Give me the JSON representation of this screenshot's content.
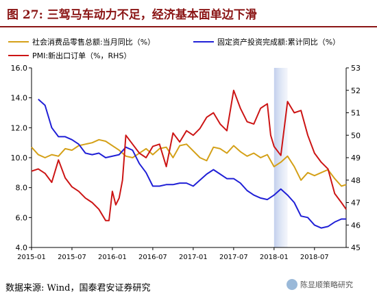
{
  "header": {
    "title": "图 27:  三驾马车动力不足，经济基本面单边下滑"
  },
  "footer": {
    "source": "数据来源:  Wind，国泰君安证券研究",
    "watermark": "陈显顺策略研究"
  },
  "chart_data": {
    "type": "line",
    "x_tick_labels": [
      "2015-01",
      "2015-07",
      "2016-01",
      "2016-07",
      "2017-01",
      "2017-07",
      "2018-01",
      "2018-07"
    ],
    "x_range_months": [
      0,
      46
    ],
    "yleft": {
      "min": 4.0,
      "max": 16.0,
      "ticks": [
        "4.0",
        "6.0",
        "8.0",
        "10.0",
        "12.0",
        "14.0",
        "16.0"
      ]
    },
    "yright": {
      "min": 45,
      "max": 53,
      "ticks": [
        "45",
        "46",
        "47",
        "48",
        "49",
        "50",
        "51",
        "52",
        "53"
      ]
    },
    "shaded_region": [
      36,
      38
    ],
    "series": [
      {
        "name": "社会消费品零售总额:当月同比（%）",
        "color": "#d4a017",
        "axis": "left",
        "points": [
          [
            0,
            10.7
          ],
          [
            1,
            10.2
          ],
          [
            2,
            10.0
          ],
          [
            3,
            10.2
          ],
          [
            4,
            10.1
          ],
          [
            5,
            10.6
          ],
          [
            6,
            10.5
          ],
          [
            7,
            10.8
          ],
          [
            8,
            10.9
          ],
          [
            9,
            11.0
          ],
          [
            10,
            11.2
          ],
          [
            11,
            11.1
          ],
          [
            13,
            10.5
          ],
          [
            14,
            10.1
          ],
          [
            15,
            10.0
          ],
          [
            16,
            10.3
          ],
          [
            17,
            10.6
          ],
          [
            18,
            10.2
          ],
          [
            19,
            10.6
          ],
          [
            20,
            10.7
          ],
          [
            21,
            10.0
          ],
          [
            22,
            10.8
          ],
          [
            23,
            10.9
          ],
          [
            25,
            10.0
          ],
          [
            26,
            9.8
          ],
          [
            27,
            10.7
          ],
          [
            28,
            10.6
          ],
          [
            29,
            10.3
          ],
          [
            30,
            10.8
          ],
          [
            31,
            10.4
          ],
          [
            32,
            10.1
          ],
          [
            33,
            10.3
          ],
          [
            34,
            10.0
          ],
          [
            35,
            10.2
          ],
          [
            36,
            9.4
          ],
          [
            37,
            9.7
          ],
          [
            38,
            10.1
          ],
          [
            39,
            9.4
          ],
          [
            40,
            8.5
          ],
          [
            41,
            9.0
          ],
          [
            42,
            8.8
          ],
          [
            43,
            9.0
          ],
          [
            44,
            9.2
          ],
          [
            45,
            8.6
          ],
          [
            46,
            8.1
          ],
          [
            46.7,
            8.2
          ]
        ]
      },
      {
        "name": "固定资产投资完成额:累计同比（%）",
        "color": "#1f1fd6",
        "axis": "left",
        "points": [
          [
            1,
            13.9
          ],
          [
            2,
            13.5
          ],
          [
            3,
            12.0
          ],
          [
            4,
            11.4
          ],
          [
            5,
            11.4
          ],
          [
            6,
            11.2
          ],
          [
            7,
            10.9
          ],
          [
            8,
            10.3
          ],
          [
            9,
            10.2
          ],
          [
            10,
            10.3
          ],
          [
            11,
            10.0
          ],
          [
            13,
            10.2
          ],
          [
            14,
            10.7
          ],
          [
            15,
            10.5
          ],
          [
            16,
            9.6
          ],
          [
            17,
            9.0
          ],
          [
            18,
            8.1
          ],
          [
            19,
            8.1
          ],
          [
            20,
            8.2
          ],
          [
            21,
            8.2
          ],
          [
            22,
            8.3
          ],
          [
            23,
            8.3
          ],
          [
            24,
            8.1
          ],
          [
            26,
            8.9
          ],
          [
            27,
            9.2
          ],
          [
            28,
            8.9
          ],
          [
            29,
            8.6
          ],
          [
            30,
            8.6
          ],
          [
            31,
            8.3
          ],
          [
            32,
            7.8
          ],
          [
            33,
            7.5
          ],
          [
            34,
            7.3
          ],
          [
            35,
            7.2
          ],
          [
            36,
            7.5
          ],
          [
            37,
            7.9
          ],
          [
            38,
            7.5
          ],
          [
            39,
            7.0
          ],
          [
            40,
            6.1
          ],
          [
            41,
            6.0
          ],
          [
            42,
            5.5
          ],
          [
            43,
            5.3
          ],
          [
            44,
            5.4
          ],
          [
            45,
            5.7
          ],
          [
            46,
            5.9
          ],
          [
            46.7,
            5.9
          ]
        ]
      },
      {
        "name": "PMI:新出口订单（%，RHS）",
        "color": "#cc1414",
        "axis": "right",
        "points": [
          [
            0,
            48.4
          ],
          [
            1,
            48.5
          ],
          [
            2,
            48.3
          ],
          [
            3,
            47.9
          ],
          [
            4,
            48.9
          ],
          [
            5,
            48.1
          ],
          [
            6,
            47.7
          ],
          [
            7,
            47.5
          ],
          [
            8,
            47.2
          ],
          [
            9,
            47.0
          ],
          [
            10,
            46.7
          ],
          [
            11,
            46.2
          ],
          [
            11.5,
            46.2
          ],
          [
            12,
            47.5
          ],
          [
            12.5,
            46.9
          ],
          [
            13,
            47.2
          ],
          [
            13.5,
            48.0
          ],
          [
            14,
            50.0
          ],
          [
            15,
            49.6
          ],
          [
            16,
            49.2
          ],
          [
            17,
            49.0
          ],
          [
            18,
            49.5
          ],
          [
            19,
            49.6
          ],
          [
            20,
            48.6
          ],
          [
            21,
            50.1
          ],
          [
            22,
            49.7
          ],
          [
            23,
            50.2
          ],
          [
            24,
            50.0
          ],
          [
            25,
            50.3
          ],
          [
            26,
            50.8
          ],
          [
            27,
            51.0
          ],
          [
            28,
            50.5
          ],
          [
            29,
            50.2
          ],
          [
            30,
            52.0
          ],
          [
            31,
            51.2
          ],
          [
            32,
            50.6
          ],
          [
            33,
            50.5
          ],
          [
            34,
            51.2
          ],
          [
            35,
            51.4
          ],
          [
            35.5,
            50.0
          ],
          [
            36,
            49.5
          ],
          [
            37,
            49.1
          ],
          [
            38,
            51.5
          ],
          [
            39,
            51.0
          ],
          [
            40,
            51.1
          ],
          [
            41,
            50.0
          ],
          [
            42,
            49.2
          ],
          [
            43,
            48.8
          ],
          [
            44,
            48.5
          ],
          [
            45,
            47.4
          ],
          [
            46,
            47.0
          ],
          [
            46.7,
            46.7
          ]
        ]
      }
    ]
  }
}
